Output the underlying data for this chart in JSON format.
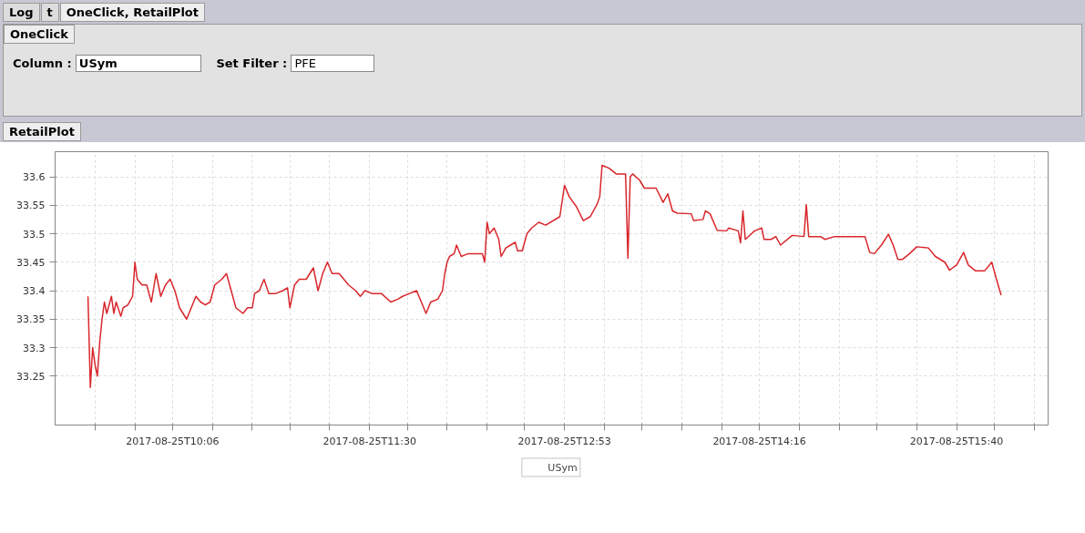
{
  "chart_data": {
    "type": "line",
    "title": "RetailPlot",
    "annotations": [
      "Log",
      "t",
      "OneClick, RetailPlot",
      "OneClick",
      "Column :",
      "USym",
      "Set Filter :",
      "PFE"
    ],
    "xlim": [
      "2017-08-25T09:16",
      "2017-08-25T16:19"
    ],
    "xticks": [
      {
        "value": "2017-08-25T09:33",
        "label": null
      },
      {
        "value": "2017-08-25T09:50",
        "label": null
      },
      "2017-08-25T10:06",
      {
        "value": "2017-08-25T10:23",
        "label": null
      },
      {
        "value": "2017-08-25T10:40",
        "label": null
      },
      {
        "value": "2017-08-25T10:56",
        "label": null
      },
      {
        "value": "2017-08-25T11:13",
        "label": null
      },
      "2017-08-25T11:30",
      {
        "value": "2017-08-25T11:46",
        "label": null
      },
      {
        "value": "2017-08-25T12:03",
        "label": null
      },
      {
        "value": "2017-08-25T12:20",
        "label": null
      },
      {
        "value": "2017-08-25T12:36",
        "label": null
      },
      "2017-08-25T12:53",
      {
        "value": "2017-08-25T13:10",
        "label": null
      },
      {
        "value": "2017-08-25T13:26",
        "label": null
      },
      {
        "value": "2017-08-25T13:43",
        "label": null
      },
      {
        "value": "2017-08-25T14:00",
        "label": null
      },
      "2017-08-25T14:16",
      {
        "value": "2017-08-25T14:33",
        "label": null
      },
      {
        "value": "2017-08-25T14:50",
        "label": null
      },
      {
        "value": "2017-08-25T15:06",
        "label": null
      },
      {
        "value": "2017-08-25T15:23",
        "label": null
      },
      "2017-08-25T15:40",
      {
        "value": "2017-08-25T15:56",
        "label": null
      },
      {
        "value": "2017-08-25T16:13",
        "label": null
      }
    ],
    "ylim": [
      33.164,
      33.644
    ],
    "yticks": [
      33.25,
      33.3,
      33.35,
      33.4,
      33.45,
      33.5,
      33.55,
      33.6
    ],
    "grid": true,
    "legend": "bottom",
    "marker": "none",
    "line_style": "solid",
    "x": [
      "2017-08-25T09:30",
      "2017-08-25T09:31",
      "2017-08-25T09:32",
      "2017-08-25T09:33",
      "2017-08-25T09:34",
      "2017-08-25T09:35",
      "2017-08-25T09:36",
      "2017-08-25T09:37",
      "2017-08-25T09:38",
      "2017-08-25T09:40",
      "2017-08-25T09:41",
      "2017-08-25T09:42",
      "2017-08-25T09:44",
      "2017-08-25T09:45",
      "2017-08-25T09:47",
      "2017-08-25T09:49",
      "2017-08-25T09:50",
      "2017-08-25T09:51",
      "2017-08-25T09:53",
      "2017-08-25T09:55",
      "2017-08-25T09:57",
      "2017-08-25T09:59",
      "2017-08-25T10:01",
      "2017-08-25T10:03",
      "2017-08-25T10:05",
      "2017-08-25T10:07",
      "2017-08-25T10:09",
      "2017-08-25T10:12",
      "2017-08-25T10:14",
      "2017-08-25T10:16",
      "2017-08-25T10:18",
      "2017-08-25T10:20",
      "2017-08-25T10:22",
      "2017-08-25T10:24",
      "2017-08-25T10:27",
      "2017-08-25T10:29",
      "2017-08-25T10:31",
      "2017-08-25T10:33",
      "2017-08-25T10:36",
      "2017-08-25T10:38",
      "2017-08-25T10:40",
      "2017-08-25T10:41",
      "2017-08-25T10:43",
      "2017-08-25T10:45",
      "2017-08-25T10:47",
      "2017-08-25T10:50",
      "2017-08-25T10:53",
      "2017-08-25T10:55",
      "2017-08-25T10:56",
      "2017-08-25T10:58",
      "2017-08-25T11:00",
      "2017-08-25T11:03",
      "2017-08-25T11:06",
      "2017-08-25T11:08",
      "2017-08-25T11:10",
      "2017-08-25T11:12",
      "2017-08-25T11:14",
      "2017-08-25T11:17",
      "2017-08-25T11:19",
      "2017-08-25T11:21",
      "2017-08-25T11:24",
      "2017-08-25T11:26",
      "2017-08-25T11:28",
      "2017-08-25T11:31",
      "2017-08-25T11:35",
      "2017-08-25T11:39",
      "2017-08-25T11:42",
      "2017-08-25T11:44",
      "2017-08-25T11:47",
      "2017-08-25T11:50",
      "2017-08-25T11:52",
      "2017-08-25T11:54",
      "2017-08-25T11:56",
      "2017-08-25T11:59",
      "2017-08-25T12:01",
      "2017-08-25T12:02",
      "2017-08-25T12:03",
      "2017-08-25T12:04",
      "2017-08-25T12:06",
      "2017-08-25T12:07",
      "2017-08-25T12:09",
      "2017-08-25T12:12",
      "2017-08-25T12:15",
      "2017-08-25T12:18",
      "2017-08-25T12:19",
      "2017-08-25T12:20",
      "2017-08-25T12:21",
      "2017-08-25T12:23",
      "2017-08-25T12:25",
      "2017-08-25T12:26",
      "2017-08-25T12:28",
      "2017-08-25T12:30",
      "2017-08-25T12:32",
      "2017-08-25T12:33",
      "2017-08-25T12:35",
      "2017-08-25T12:37",
      "2017-08-25T12:39",
      "2017-08-25T12:42",
      "2017-08-25T12:45",
      "2017-08-25T12:51",
      "2017-08-25T12:53",
      "2017-08-25T12:55",
      "2017-08-25T12:58",
      "2017-08-25T13:01",
      "2017-08-25T13:04",
      "2017-08-25T13:07",
      "2017-08-25T13:08",
      "2017-08-25T13:09",
      "2017-08-25T13:12",
      "2017-08-25T13:15",
      "2017-08-25T13:19",
      "2017-08-25T13:20",
      "2017-08-25T13:21",
      "2017-08-25T13:22",
      "2017-08-25T13:25",
      "2017-08-25T13:27",
      "2017-08-25T13:32",
      "2017-08-25T13:35",
      "2017-08-25T13:37",
      "2017-08-25T13:39",
      "2017-08-25T13:41",
      "2017-08-25T13:47",
      "2017-08-25T13:48",
      "2017-08-25T13:52",
      "2017-08-25T13:53",
      "2017-08-25T13:55",
      "2017-08-25T13:58",
      "2017-08-25T14:02",
      "2017-08-25T14:03",
      "2017-08-25T14:07",
      "2017-08-25T14:08",
      "2017-08-25T14:09",
      "2017-08-25T14:10",
      "2017-08-25T14:14",
      "2017-08-25T14:17",
      "2017-08-25T14:18",
      "2017-08-25T14:21",
      "2017-08-25T14:23",
      "2017-08-25T14:25",
      "2017-08-25T14:30",
      "2017-08-25T14:35",
      "2017-08-25T14:36",
      "2017-08-25T14:37",
      "2017-08-25T14:42",
      "2017-08-25T14:44",
      "2017-08-25T14:48",
      "2017-08-25T14:55",
      "2017-08-25T15:01",
      "2017-08-25T15:03",
      "2017-08-25T15:05",
      "2017-08-25T15:08",
      "2017-08-25T15:11",
      "2017-08-25T15:13",
      "2017-08-25T15:15",
      "2017-08-25T15:17",
      "2017-08-25T15:20",
      "2017-08-25T15:23",
      "2017-08-25T15:28",
      "2017-08-25T15:31",
      "2017-08-25T15:35",
      "2017-08-25T15:37",
      "2017-08-25T15:40",
      "2017-08-25T15:43",
      "2017-08-25T15:45",
      "2017-08-25T15:48",
      "2017-08-25T15:52",
      "2017-08-25T15:55",
      "2017-08-25T15:57",
      "2017-08-25T15:59"
    ],
    "series": [
      {
        "name": "USym",
        "color": "#d9262b",
        "values": [
          33.39,
          33.23,
          33.3,
          33.27,
          33.25,
          33.31,
          33.35,
          33.38,
          33.36,
          33.39,
          33.36,
          33.38,
          33.355,
          33.37,
          33.375,
          33.39,
          33.45,
          33.42,
          33.41,
          33.41,
          33.38,
          33.43,
          33.39,
          33.41,
          33.42,
          33.4,
          33.37,
          33.35,
          33.37,
          33.39,
          33.38,
          33.375,
          33.38,
          33.41,
          33.42,
          33.43,
          33.4,
          33.37,
          33.36,
          33.37,
          33.37,
          33.395,
          33.4,
          33.42,
          33.395,
          33.395,
          33.4,
          33.405,
          33.37,
          33.41,
          33.42,
          33.42,
          33.44,
          33.4,
          33.43,
          33.45,
          33.43,
          33.43,
          33.42,
          33.41,
          33.4,
          33.39,
          33.4,
          33.395,
          33.395,
          33.38,
          33.385,
          33.39,
          33.395,
          33.4,
          33.38,
          33.36,
          33.38,
          33.385,
          33.4,
          33.43,
          33.45,
          33.46,
          33.465,
          33.48,
          33.46,
          33.465,
          33.465,
          33.465,
          33.45,
          33.52,
          33.5,
          33.51,
          33.49,
          33.46,
          33.475,
          33.48,
          33.485,
          33.47,
          33.47,
          33.5,
          33.51,
          33.52,
          33.515,
          33.53,
          33.585,
          33.565,
          33.548,
          33.523,
          33.53,
          33.553,
          33.565,
          33.62,
          33.615,
          33.605,
          33.605,
          33.457,
          33.6,
          33.605,
          33.594,
          33.58,
          33.58,
          33.555,
          33.57,
          33.54,
          33.536,
          33.535,
          33.523,
          33.525,
          33.54,
          33.535,
          33.506,
          33.505,
          33.51,
          33.505,
          33.484,
          33.54,
          33.49,
          33.505,
          33.51,
          33.49,
          33.49,
          33.495,
          33.48,
          33.497,
          33.495,
          33.551,
          33.495,
          33.495,
          33.49,
          33.495,
          33.495,
          33.495,
          33.467,
          33.465,
          33.48,
          33.499,
          33.48,
          33.455,
          33.455,
          33.465,
          33.477,
          33.475,
          33.46,
          33.45,
          33.436,
          33.445,
          33.467,
          33.445,
          33.435,
          33.435,
          33.45,
          33.42,
          33.392
        ]
      }
    ]
  }
}
